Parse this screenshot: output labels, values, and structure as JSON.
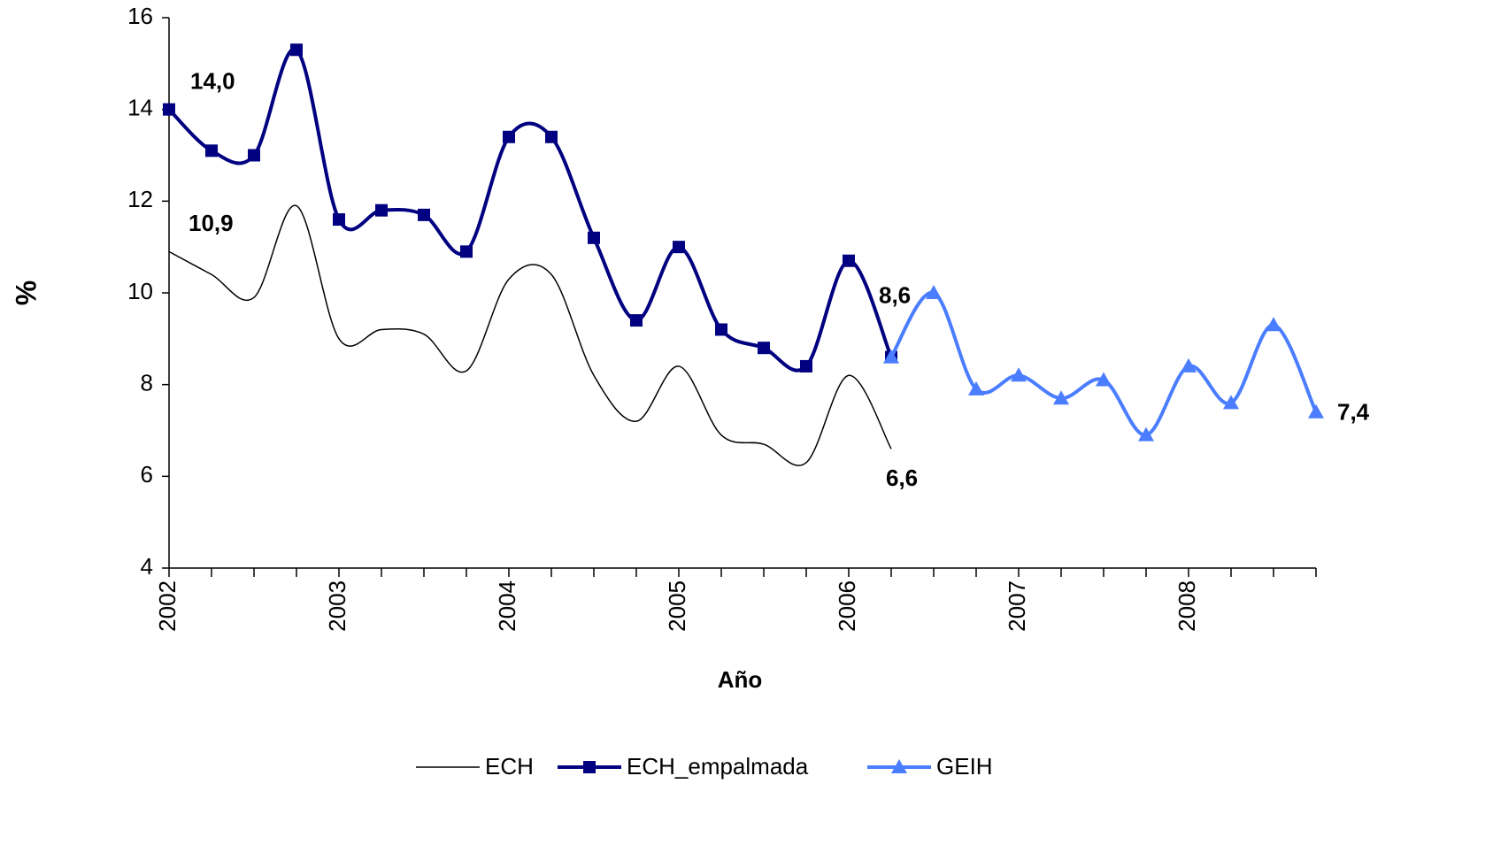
{
  "chart_data": {
    "type": "line",
    "x": [
      2002,
      2002.25,
      2002.5,
      2002.75,
      2003,
      2003.25,
      2003.5,
      2003.75,
      2004,
      2004.25,
      2004.5,
      2004.75,
      2005,
      2005.25,
      2005.5,
      2005.75,
      2006,
      2006.25,
      2006.5,
      2006.75,
      2007,
      2007.25,
      2007.5,
      2007.75,
      2008,
      2008.25,
      2008.5,
      2008.75
    ],
    "xlim": [
      2002,
      2008.75
    ],
    "xticks": [
      2002,
      2003,
      2004,
      2005,
      2006,
      2007,
      2008
    ],
    "ylim": [
      4,
      16
    ],
    "yticks": [
      4,
      6,
      8,
      10,
      12,
      14,
      16
    ],
    "xlabel": "Año",
    "ylabel": "%",
    "series": [
      {
        "name": "ECH",
        "color": "#000000",
        "values": [
          10.9,
          10.4,
          9.9,
          11.9,
          9.0,
          9.2,
          9.1,
          8.3,
          10.3,
          10.4,
          8.2,
          7.2,
          8.4,
          6.9,
          6.7,
          6.3,
          8.2,
          6.6,
          null,
          null,
          null,
          null,
          null,
          null,
          null,
          null,
          null,
          null
        ],
        "value_labels": [
          "10,9",
          null,
          null,
          null,
          null,
          null,
          null,
          null,
          null,
          null,
          null,
          null,
          null,
          null,
          null,
          null,
          null,
          "6,6",
          null,
          null,
          null,
          null,
          null,
          null,
          null,
          null,
          null,
          null
        ]
      },
      {
        "name": "ECH_empalmada",
        "color": "#000080",
        "values": [
          14.0,
          13.1,
          13.0,
          15.3,
          11.6,
          11.8,
          11.7,
          10.9,
          13.4,
          13.4,
          11.2,
          9.4,
          11.0,
          9.2,
          8.8,
          8.4,
          10.7,
          8.6,
          null,
          null,
          null,
          null,
          null,
          null,
          null,
          null,
          null,
          null
        ],
        "value_labels": [
          "14,0",
          null,
          null,
          null,
          null,
          null,
          null,
          null,
          null,
          null,
          null,
          null,
          null,
          null,
          null,
          null,
          null,
          "8,6",
          null,
          null,
          null,
          null,
          null,
          null,
          null,
          null,
          null,
          null
        ]
      },
      {
        "name": "GEIH",
        "color": "#4a7dff",
        "values": [
          null,
          null,
          null,
          null,
          null,
          null,
          null,
          null,
          null,
          null,
          null,
          null,
          null,
          null,
          null,
          null,
          null,
          8.6,
          10.0,
          7.9,
          8.2,
          7.7,
          8.1,
          6.9,
          8.4,
          7.6,
          9.3,
          7.4
        ],
        "value_labels": [
          null,
          null,
          null,
          null,
          null,
          null,
          null,
          null,
          null,
          null,
          null,
          null,
          null,
          null,
          null,
          null,
          null,
          null,
          null,
          null,
          null,
          null,
          null,
          null,
          null,
          null,
          null,
          "7,4"
        ]
      }
    ]
  }
}
